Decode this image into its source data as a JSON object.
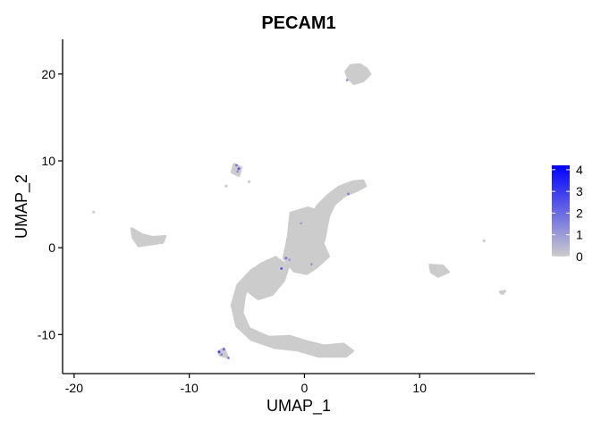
{
  "chart_data": {
    "type": "scatter",
    "title": "PECAM1",
    "xlabel": "UMAP_1",
    "ylabel": "UMAP_2",
    "xlim": [
      -21.0,
      20.0
    ],
    "ylim": [
      -14.5,
      24.0
    ],
    "xticks": [
      -20,
      -10,
      0,
      10
    ],
    "yticks": [
      -10,
      0,
      10,
      20
    ],
    "grid": false,
    "colors": {
      "low": "#cccccc",
      "high": "#0000ff",
      "axis": "#000000"
    },
    "legend": {
      "placement": "right",
      "min": 0,
      "max": 4.2,
      "ticks": [
        {
          "value": 0,
          "label": "0"
        },
        {
          "value": 1,
          "label": "1"
        },
        {
          "value": 2,
          "label": "2"
        },
        {
          "value": 3,
          "label": "3"
        },
        {
          "value": 4,
          "label": "4"
        }
      ]
    },
    "clusters": [
      {
        "name": "top-island",
        "points": [
          [
            3.6,
            20.3
          ],
          [
            4.0,
            21.0
          ],
          [
            4.8,
            21.1
          ],
          [
            5.4,
            20.6
          ],
          [
            5.7,
            20.0
          ],
          [
            5.1,
            19.2
          ],
          [
            4.3,
            18.9
          ],
          [
            3.8,
            19.5
          ]
        ]
      },
      {
        "name": "upper-arc",
        "points": [
          [
            0.5,
            1.5
          ],
          [
            0.6,
            3.4
          ],
          [
            1.1,
            4.8
          ],
          [
            2.0,
            6.0
          ],
          [
            3.0,
            7.0
          ],
          [
            4.2,
            7.6
          ],
          [
            5.1,
            7.7
          ],
          [
            5.3,
            7.1
          ],
          [
            4.6,
            6.6
          ],
          [
            3.5,
            6.0
          ],
          [
            2.6,
            5.0
          ],
          [
            2.1,
            3.6
          ],
          [
            1.9,
            2.2
          ],
          [
            1.7,
            0.8
          ],
          [
            1.3,
            0.2
          ],
          [
            0.9,
            0.6
          ]
        ]
      },
      {
        "name": "central-body",
        "points": [
          [
            -1.2,
            4.0
          ],
          [
            0.3,
            4.6
          ],
          [
            1.5,
            4.1
          ],
          [
            1.9,
            2.2
          ],
          [
            1.6,
            0.5
          ],
          [
            2.1,
            -1.0
          ],
          [
            1.0,
            -2.3
          ],
          [
            0.2,
            -3.0
          ],
          [
            -0.9,
            -2.7
          ],
          [
            -1.8,
            -1.2
          ],
          [
            -1.4,
            1.4
          ]
        ]
      },
      {
        "name": "lower-arc",
        "points": [
          [
            -2.8,
            -2.1
          ],
          [
            -4.5,
            -3.4
          ],
          [
            -5.2,
            -5.5
          ],
          [
            -5.4,
            -7.5
          ],
          [
            -4.8,
            -9.3
          ],
          [
            -3.1,
            -10.3
          ],
          [
            -1.3,
            -10.2
          ],
          [
            0.2,
            -10.8
          ],
          [
            1.7,
            -11.3
          ],
          [
            3.4,
            -11.1
          ],
          [
            4.2,
            -11.9
          ],
          [
            3.6,
            -12.5
          ],
          [
            1.2,
            -12.5
          ],
          [
            -0.6,
            -11.8
          ],
          [
            -2.6,
            -11.5
          ],
          [
            -4.6,
            -10.6
          ],
          [
            -5.9,
            -9.0
          ],
          [
            -6.3,
            -6.6
          ],
          [
            -5.8,
            -4.3
          ],
          [
            -4.6,
            -2.6
          ],
          [
            -3.2,
            -1.5
          ]
        ]
      },
      {
        "name": "lower-left-blob",
        "points": [
          [
            -3.8,
            -1.9
          ],
          [
            -2.5,
            -1.1
          ],
          [
            -1.4,
            -2.2
          ],
          [
            -1.8,
            -3.8
          ],
          [
            -2.8,
            -5.4
          ],
          [
            -4.0,
            -5.9
          ],
          [
            -5.1,
            -4.8
          ],
          [
            -4.9,
            -3.0
          ]
        ]
      },
      {
        "name": "left-island",
        "points": [
          [
            -15.0,
            2.2
          ],
          [
            -14.1,
            1.5
          ],
          [
            -13.2,
            1.2
          ],
          [
            -12.1,
            1.3
          ],
          [
            -12.3,
            0.6
          ],
          [
            -13.4,
            0.4
          ],
          [
            -14.4,
            0.2
          ],
          [
            -14.9,
            1.2
          ]
        ]
      },
      {
        "name": "upper-left-island",
        "points": [
          [
            -6.1,
            9.6
          ],
          [
            -5.5,
            9.2
          ],
          [
            -5.7,
            8.3
          ],
          [
            -6.3,
            8.7
          ]
        ]
      },
      {
        "name": "right-island",
        "points": [
          [
            10.9,
            -2.0
          ],
          [
            12.0,
            -2.1
          ],
          [
            12.5,
            -2.8
          ],
          [
            11.6,
            -3.3
          ],
          [
            11.0,
            -2.8
          ]
        ]
      },
      {
        "name": "far-right-speck",
        "points": [
          [
            17.0,
            -5.1
          ],
          [
            17.4,
            -5.0
          ],
          [
            17.2,
            -5.3
          ]
        ]
      },
      {
        "name": "bottom-left-speck",
        "points": [
          [
            -7.5,
            -12.0
          ],
          [
            -7.0,
            -11.6
          ],
          [
            -6.7,
            -12.6
          ],
          [
            -7.3,
            -12.4
          ]
        ]
      }
    ],
    "isolated_points": [
      [
        -18.3,
        4.1
      ],
      [
        15.6,
        0.8
      ],
      [
        -4.8,
        7.6
      ],
      [
        -6.8,
        7.1
      ],
      [
        -0.4,
        -2.8
      ]
    ],
    "expressing_points": [
      {
        "x": -5.9,
        "y": 9.5,
        "value": 1.8
      },
      {
        "x": -5.7,
        "y": 9.1,
        "value": 2.5
      },
      {
        "x": -5.8,
        "y": 8.8,
        "value": 1.2
      },
      {
        "x": -7.4,
        "y": -12.0,
        "value": 2.8
      },
      {
        "x": -7.0,
        "y": -11.7,
        "value": 2.2
      },
      {
        "x": -7.2,
        "y": -12.3,
        "value": 1.5
      },
      {
        "x": -6.6,
        "y": -12.7,
        "value": 1.8
      },
      {
        "x": -1.6,
        "y": -1.2,
        "value": 2.0
      },
      {
        "x": -1.3,
        "y": -1.4,
        "value": 1.0
      },
      {
        "x": -2.0,
        "y": -2.4,
        "value": 2.6
      },
      {
        "x": 3.8,
        "y": 6.2,
        "value": 1.4
      },
      {
        "x": 3.7,
        "y": 19.3,
        "value": 1.0
      },
      {
        "x": -0.3,
        "y": 2.8,
        "value": 0.9
      },
      {
        "x": 0.6,
        "y": -1.9,
        "value": 1.1
      }
    ]
  }
}
